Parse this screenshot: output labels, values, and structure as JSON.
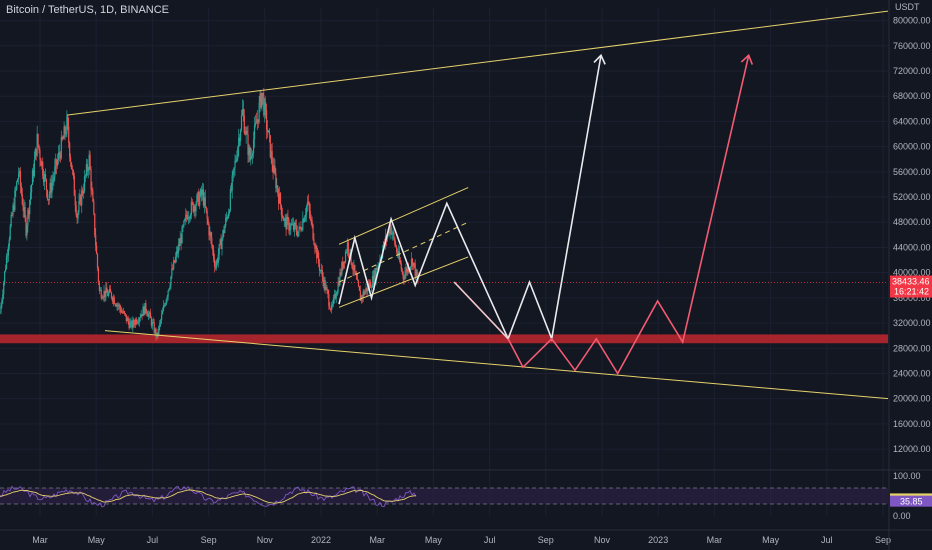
{
  "header": {
    "title": "Bitcoin / TetherUS, 1D, BINANCE"
  },
  "chart_data": {
    "type": "candlestick",
    "symbol": "Bitcoin / TetherUS",
    "interval": "1D",
    "exchange": "BINANCE",
    "currency": "USDT",
    "x_axis": {
      "labels": [
        "Mar",
        "May",
        "Jul",
        "Sep",
        "Nov",
        "2022",
        "Mar",
        "May",
        "Jul",
        "Sep",
        "Nov",
        "2023",
        "Mar",
        "May",
        "Jul",
        "Sep"
      ],
      "range": [
        "2021-02-01",
        "2023-09-15"
      ]
    },
    "y_axis": {
      "unit": "USDT",
      "ticks": [
        "80000.00",
        "76000.00",
        "72000.00",
        "68000.00",
        "64000.00",
        "60000.00",
        "56000.00",
        "52000.00",
        "48000.00",
        "44000.00",
        "40000.00",
        "36000.00",
        "32000.00",
        "28000.00",
        "24000.00",
        "20000.00",
        "16000.00",
        "12000.00"
      ],
      "range": [
        9000,
        82000
      ]
    },
    "current_price": {
      "value": "38433.46",
      "countdown": "16:21:42",
      "price": 38433.46,
      "color": "#f23645"
    },
    "price_path": [
      {
        "t": "2021-02-01",
        "p": 33500
      },
      {
        "t": "2021-02-10",
        "p": 45000
      },
      {
        "t": "2021-02-21",
        "p": 56000
      },
      {
        "t": "2021-03-01",
        "p": 47000
      },
      {
        "t": "2021-03-13",
        "p": 61000
      },
      {
        "t": "2021-03-25",
        "p": 52000
      },
      {
        "t": "2021-04-14",
        "p": 63500
      },
      {
        "t": "2021-04-25",
        "p": 49000
      },
      {
        "t": "2021-05-08",
        "p": 58000
      },
      {
        "t": "2021-05-19",
        "p": 37000
      },
      {
        "t": "2021-06-01",
        "p": 36500
      },
      {
        "t": "2021-06-22",
        "p": 31500
      },
      {
        "t": "2021-07-08",
        "p": 34500
      },
      {
        "t": "2021-07-20",
        "p": 29800
      },
      {
        "t": "2021-08-05",
        "p": 40000
      },
      {
        "t": "2021-08-22",
        "p": 49500
      },
      {
        "t": "2021-09-07",
        "p": 52500
      },
      {
        "t": "2021-09-21",
        "p": 41000
      },
      {
        "t": "2021-10-05",
        "p": 50000
      },
      {
        "t": "2021-10-20",
        "p": 65500
      },
      {
        "t": "2021-10-28",
        "p": 58000
      },
      {
        "t": "2021-11-10",
        "p": 68500
      },
      {
        "t": "2021-11-22",
        "p": 56500
      },
      {
        "t": "2021-12-04",
        "p": 48000
      },
      {
        "t": "2021-12-20",
        "p": 46500
      },
      {
        "t": "2021-12-29",
        "p": 51000
      },
      {
        "t": "2022-01-10",
        "p": 41500
      },
      {
        "t": "2022-01-24",
        "p": 34000
      },
      {
        "t": "2022-02-10",
        "p": 44500
      },
      {
        "t": "2022-02-24",
        "p": 36000
      },
      {
        "t": "2022-03-10",
        "p": 39000
      },
      {
        "t": "2022-03-28",
        "p": 47500
      },
      {
        "t": "2022-04-11",
        "p": 39500
      },
      {
        "t": "2022-04-21",
        "p": 42000
      },
      {
        "t": "2022-04-27",
        "p": 38433
      }
    ],
    "horizontal_levels": [
      {
        "label": "current price line",
        "price": 38433.46,
        "color": "#f23645",
        "style": "dotted"
      }
    ],
    "zones": [
      {
        "label": "support zone",
        "from": 28800,
        "to": 30200,
        "color": "#c1272d",
        "start": "2021-02-01"
      }
    ],
    "trendlines": [
      {
        "label": "upper channel",
        "color": "#e6d26b",
        "points": [
          {
            "t": "2021-04-14",
            "p": 65000
          },
          {
            "t": "2023-09-15",
            "p": 81500
          }
        ]
      },
      {
        "label": "lower channel",
        "color": "#e6d26b",
        "points": [
          {
            "t": "2021-05-25",
            "p": 30800
          },
          {
            "t": "2023-09-15",
            "p": 20000
          }
        ]
      },
      {
        "label": "rising channel top",
        "color": "#e6d26b",
        "points": [
          {
            "t": "2022-02-01",
            "p": 44500
          },
          {
            "t": "2022-06-20",
            "p": 53500
          }
        ]
      },
      {
        "label": "rising channel bottom",
        "color": "#e6d26b",
        "points": [
          {
            "t": "2022-02-01",
            "p": 34500
          },
          {
            "t": "2022-06-20",
            "p": 42500
          }
        ]
      },
      {
        "label": "rising channel mid",
        "color": "#e6d26b",
        "dashed": true,
        "points": [
          {
            "t": "2022-02-01",
            "p": 38500
          },
          {
            "t": "2022-06-20",
            "p": 48000
          }
        ]
      }
    ],
    "projections": [
      {
        "label": "white zigzag",
        "color": "#e9e9ee",
        "arrow": true,
        "points": [
          {
            "t": "2022-02-01",
            "p": 35000
          },
          {
            "t": "2022-02-18",
            "p": 45500
          },
          {
            "t": "2022-03-08",
            "p": 36000
          },
          {
            "t": "2022-03-29",
            "p": 48500
          },
          {
            "t": "2022-04-24",
            "p": 38000
          },
          {
            "t": "2022-05-28",
            "p": 51000
          },
          {
            "t": "2022-08-02",
            "p": 29500
          },
          {
            "t": "2022-08-25",
            "p": 38500
          },
          {
            "t": "2022-09-18",
            "p": 29500
          },
          {
            "t": "2022-11-10",
            "p": 74500
          }
        ]
      },
      {
        "label": "light pink path",
        "color": "#f4c7cc",
        "points": [
          {
            "t": "2022-06-05",
            "p": 38500
          },
          {
            "t": "2022-08-02",
            "p": 29500
          }
        ]
      },
      {
        "label": "red zigzag",
        "color": "#f25b72",
        "arrow": true,
        "points": [
          {
            "t": "2022-08-02",
            "p": 29500
          },
          {
            "t": "2022-08-18",
            "p": 25000
          },
          {
            "t": "2022-09-18",
            "p": 29500
          },
          {
            "t": "2022-10-13",
            "p": 24500
          },
          {
            "t": "2022-11-05",
            "p": 29500
          },
          {
            "t": "2022-11-28",
            "p": 24000
          },
          {
            "t": "2023-01-10",
            "p": 35500
          },
          {
            "t": "2023-02-06",
            "p": 29000
          },
          {
            "t": "2023-04-18",
            "p": 74500
          }
        ]
      }
    ]
  },
  "rsi_pane": {
    "ticks": [
      "100.00",
      "0.00"
    ],
    "values": [
      "41.44",
      "35.85"
    ],
    "range": [
      0,
      100
    ],
    "upper_band": 70,
    "lower_band": 30,
    "colors": {
      "rsi": "#7e57c2",
      "ma": "#e6d26b",
      "band": "#2c2143"
    }
  }
}
